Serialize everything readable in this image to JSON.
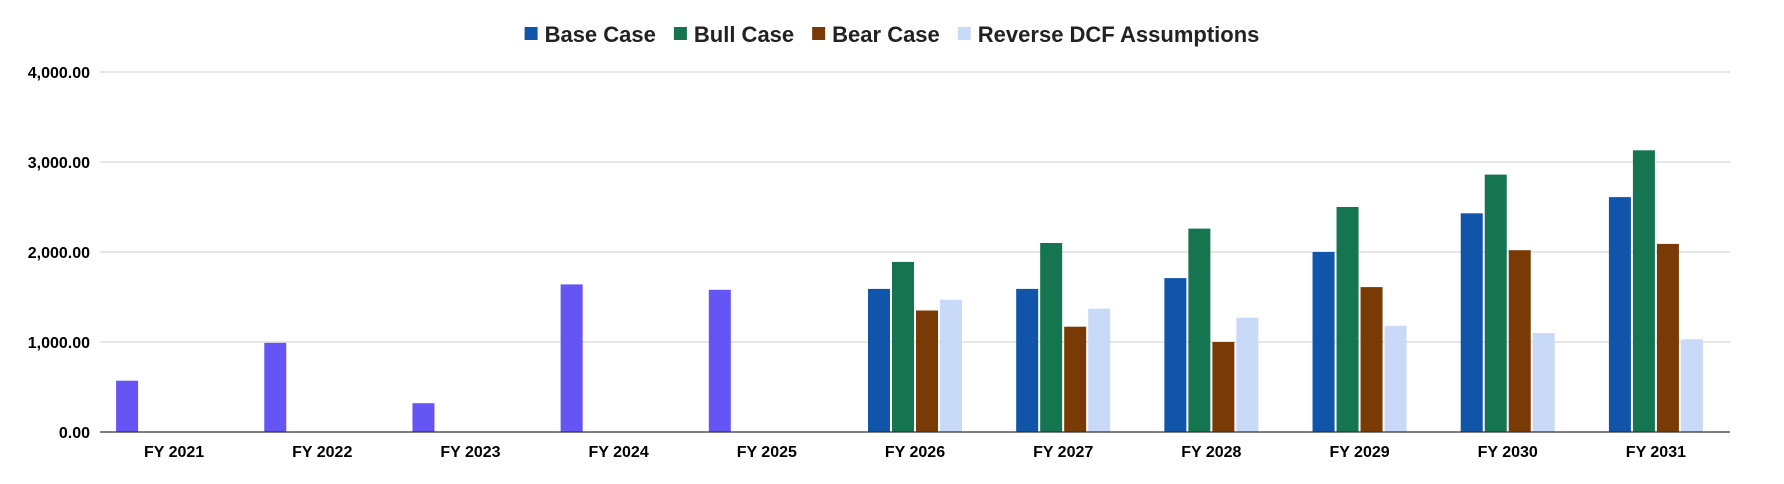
{
  "chart_data": {
    "type": "bar",
    "title": "",
    "xlabel": "",
    "ylabel": "",
    "ylim": [
      0,
      4000
    ],
    "yticks": [
      "0.00",
      "1,000.00",
      "2,000.00",
      "3,000.00",
      "4,000.00"
    ],
    "ytick_values": [
      0,
      1000,
      2000,
      3000,
      4000
    ],
    "grid": true,
    "legend_position": "top-center",
    "categories": [
      "FY 2021",
      "FY 2022",
      "FY 2023",
      "FY 2024",
      "FY 2025",
      "FY 2026",
      "FY 2027",
      "FY 2028",
      "FY 2029",
      "FY 2030",
      "FY 2031"
    ],
    "historical": {
      "color": "#6655f5",
      "values": [
        570,
        990,
        320,
        1640,
        1580,
        null,
        null,
        null,
        null,
        null,
        null
      ]
    },
    "series": [
      {
        "name": "Base Case",
        "color": "#1155aa",
        "values": [
          null,
          null,
          null,
          null,
          null,
          1590,
          1590,
          1710,
          2000,
          2430,
          2610
        ]
      },
      {
        "name": "Bull Case",
        "color": "#157550",
        "values": [
          null,
          null,
          null,
          null,
          null,
          1890,
          2100,
          2260,
          2500,
          2860,
          3130
        ]
      },
      {
        "name": "Bear Case",
        "color": "#7a3a05",
        "values": [
          null,
          null,
          null,
          null,
          null,
          1350,
          1170,
          1000,
          1610,
          2020,
          2090
        ]
      },
      {
        "name": "Reverse DCF Assumptions",
        "color": "#c9daf8",
        "values": [
          null,
          null,
          null,
          null,
          null,
          1470,
          1370,
          1270,
          1180,
          1100,
          1030
        ]
      }
    ]
  }
}
